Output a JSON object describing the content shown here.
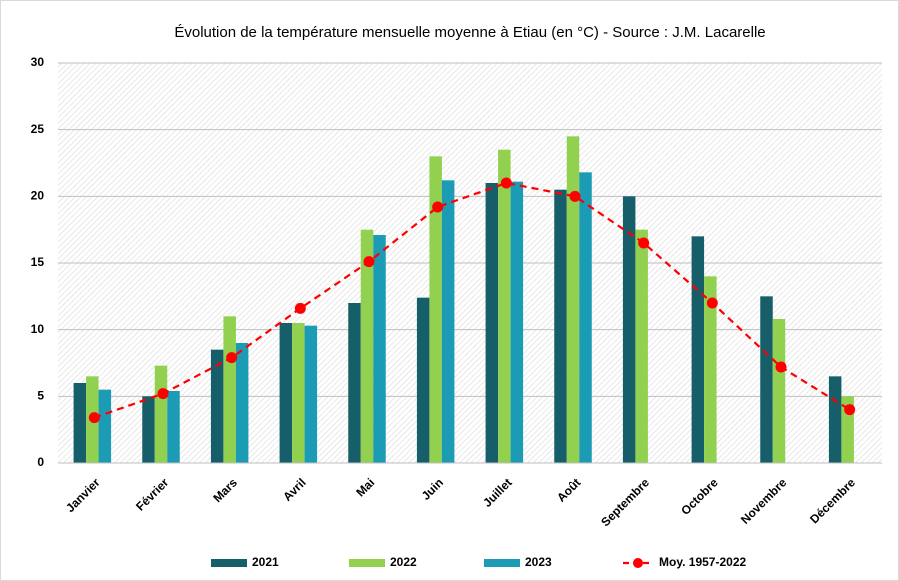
{
  "chart_data": {
    "type": "bar",
    "title": "Évolution de la température mensuelle moyenne à Etiau (en °C) - Source : J.M. Lacarelle",
    "categories": [
      "Janvier",
      "Février",
      "Mars",
      "Avril",
      "Mai",
      "Juin",
      "Juillet",
      "Août",
      "Septembre",
      "Octobre",
      "Novembre",
      "Décembre"
    ],
    "series": [
      {
        "name": "2021",
        "color": "#175e6b",
        "values": [
          6,
          5,
          8.5,
          10.5,
          12,
          12.4,
          21,
          20.5,
          20,
          17,
          12.5,
          6.5
        ]
      },
      {
        "name": "2022",
        "color": "#92d050",
        "values": [
          6.5,
          7.3,
          11,
          10.5,
          17.5,
          23,
          23.5,
          24.5,
          17.5,
          14,
          10.8,
          5
        ]
      },
      {
        "name": "2023",
        "color": "#1b9cb4",
        "values": [
          5.5,
          5.4,
          9,
          10.3,
          17.1,
          21.2,
          21.1,
          21.8,
          null,
          null,
          null,
          null
        ]
      },
      {
        "name": "Moy. 1957-2022",
        "color": "#ff0000",
        "type": "line",
        "dashed": true,
        "values": [
          3.4,
          5.2,
          7.9,
          11.6,
          15.1,
          19.2,
          21,
          20,
          16.5,
          12,
          7.2,
          4
        ]
      }
    ],
    "ylim": [
      0,
      30
    ],
    "yticks": [
      0,
      5,
      10,
      15,
      20,
      25,
      30
    ],
    "grid": true,
    "legend": "bottom"
  }
}
